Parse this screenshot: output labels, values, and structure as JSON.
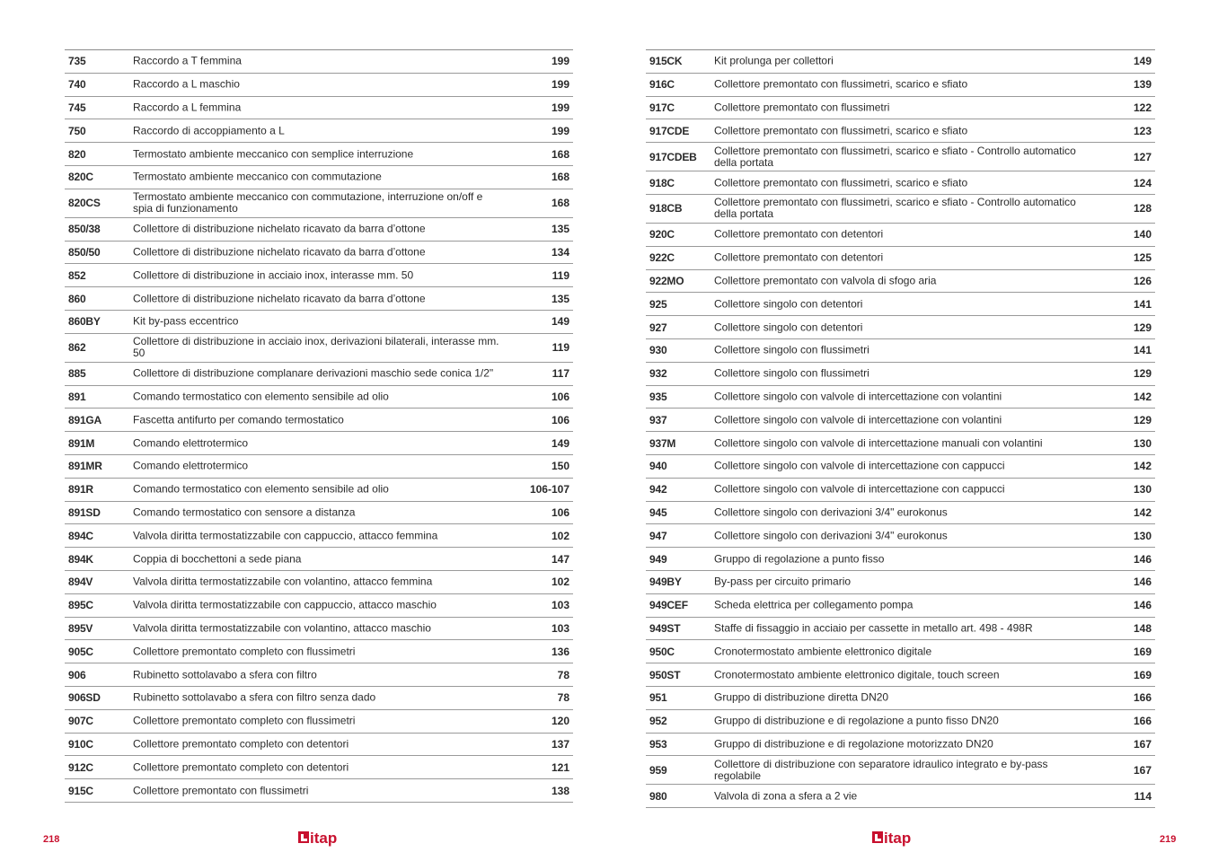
{
  "brand": {
    "name": "itap",
    "color": "#c8102e"
  },
  "left_page": {
    "page_number": "218",
    "rows": [
      [
        "735",
        "Raccordo a T femmina",
        "199"
      ],
      [
        "740",
        "Raccordo a L maschio",
        "199"
      ],
      [
        "745",
        "Raccordo a L femmina",
        "199"
      ],
      [
        "750",
        "Raccordo di accoppiamento a L",
        "199"
      ],
      [
        "820",
        "Termostato ambiente meccanico con semplice interruzione",
        "168"
      ],
      [
        "820C",
        "Termostato ambiente meccanico con commutazione",
        "168"
      ],
      [
        "820CS",
        "Termostato ambiente meccanico con commutazione, interruzione on/off e spia di funzionamento",
        "168"
      ],
      [
        "850/38",
        "Collettore di distribuzione nichelato ricavato da barra d’ottone",
        "135"
      ],
      [
        "850/50",
        "Collettore di distribuzione nichelato ricavato da barra d’ottone",
        "134"
      ],
      [
        "852",
        "Collettore di distribuzione in acciaio inox, interasse mm. 50",
        "119"
      ],
      [
        "860",
        "Collettore di distribuzione nichelato ricavato da barra d’ottone",
        "135"
      ],
      [
        "860BY",
        "Kit by-pass eccentrico",
        "149"
      ],
      [
        "862",
        "Collettore di distribuzione in acciaio inox, derivazioni bilaterali, interasse mm. 50",
        "119"
      ],
      [
        "885",
        "Collettore di distribuzione complanare derivazioni maschio sede conica 1/2\"",
        "117"
      ],
      [
        "891",
        "Comando termostatico con elemento sensibile ad olio",
        "106"
      ],
      [
        "891GA",
        "Fascetta antifurto per comando termostatico",
        "106"
      ],
      [
        "891M",
        "Comando elettrotermico",
        "149"
      ],
      [
        "891MR",
        "Comando elettrotermico",
        "150"
      ],
      [
        "891R",
        "Comando termostatico con elemento sensibile ad olio",
        "106-107"
      ],
      [
        "891SD",
        "Comando termostatico con sensore a distanza",
        "106"
      ],
      [
        "894C",
        "Valvola diritta termostatizzabile con cappuccio, attacco femmina",
        "102"
      ],
      [
        "894K",
        "Coppia di bocchettoni a sede piana",
        "147"
      ],
      [
        "894V",
        "Valvola diritta termostatizzabile con volantino, attacco femmina",
        "102"
      ],
      [
        "895C",
        "Valvola diritta termostatizzabile con cappuccio, attacco maschio",
        "103"
      ],
      [
        "895V",
        "Valvola diritta termostatizzabile con volantino, attacco maschio",
        "103"
      ],
      [
        "905C",
        "Collettore premontato completo con flussimetri",
        "136"
      ],
      [
        "906",
        "Rubinetto sottolavabo a sfera con filtro",
        "78"
      ],
      [
        "906SD",
        "Rubinetto sottolavabo a sfera con filtro senza dado",
        "78"
      ],
      [
        "907C",
        "Collettore premontato completo con flussimetri",
        "120"
      ],
      [
        "910C",
        "Collettore premontato completo con detentori",
        "137"
      ],
      [
        "912C",
        "Collettore premontato completo con detentori",
        "121"
      ],
      [
        "915C",
        "Collettore premontato con flussimetri",
        "138"
      ]
    ]
  },
  "right_page": {
    "page_number": "219",
    "rows": [
      [
        "915CK",
        "Kit prolunga per collettori",
        "149"
      ],
      [
        "916C",
        "Collettore premontato con flussimetri, scarico e sfiato",
        "139"
      ],
      [
        "917C",
        "Collettore premontato con flussimetri",
        "122"
      ],
      [
        "917CDE",
        "Collettore premontato con flussimetri, scarico e sfiato",
        "123"
      ],
      [
        "917CDEB",
        "Collettore premontato con flussimetri, scarico e sfiato - Controllo automatico della portata",
        "127"
      ],
      [
        "918C",
        "Collettore premontato con flussimetri, scarico e sfiato",
        "124"
      ],
      [
        "918CB",
        "Collettore premontato con flussimetri, scarico e sfiato - Controllo automatico della portata",
        "128"
      ],
      [
        "920C",
        "Collettore premontato con detentori",
        "140"
      ],
      [
        "922C",
        "Collettore premontato con detentori",
        "125"
      ],
      [
        "922MO",
        "Collettore premontato con valvola di sfogo aria",
        "126"
      ],
      [
        "925",
        "Collettore singolo con detentori",
        "141"
      ],
      [
        "927",
        "Collettore singolo con detentori",
        "129"
      ],
      [
        "930",
        "Collettore singolo con flussimetri",
        "141"
      ],
      [
        "932",
        "Collettore singolo con flussimetri",
        "129"
      ],
      [
        "935",
        "Collettore singolo con valvole di intercettazione con volantini",
        "142"
      ],
      [
        "937",
        "Collettore singolo con valvole di intercettazione con volantini",
        "129"
      ],
      [
        "937M",
        "Collettore singolo con valvole di intercettazione manuali con volantini",
        "130"
      ],
      [
        "940",
        "Collettore singolo con valvole di intercettazione con cappucci",
        "142"
      ],
      [
        "942",
        "Collettore singolo con valvole di intercettazione con cappucci",
        "130"
      ],
      [
        "945",
        "Collettore singolo con derivazioni 3/4\" eurokonus",
        "142"
      ],
      [
        "947",
        "Collettore singolo con derivazioni 3/4\" eurokonus",
        "130"
      ],
      [
        "949",
        "Gruppo di regolazione a punto fisso",
        "146"
      ],
      [
        "949BY",
        "By-pass per circuito primario",
        "146"
      ],
      [
        "949CEF",
        "Scheda elettrica per collegamento pompa",
        "146"
      ],
      [
        "949ST",
        "Staffe di fissaggio in acciaio per cassette in metallo art. 498 - 498R",
        "148"
      ],
      [
        "950C",
        "Cronotermostato ambiente elettronico digitale",
        "169"
      ],
      [
        "950ST",
        "Cronotermostato ambiente elettronico digitale, touch screen",
        "169"
      ],
      [
        "951",
        "Gruppo di distribuzione diretta DN20",
        "166"
      ],
      [
        "952",
        "Gruppo di distribuzione e di regolazione a punto fisso DN20",
        "166"
      ],
      [
        "953",
        "Gruppo di distribuzione e di regolazione motorizzato DN20",
        "167"
      ],
      [
        "959",
        "Collettore di distribuzione con separatore idraulico integrato e by-pass regolabile",
        "167"
      ],
      [
        "980",
        "Valvola di zona a sfera a 2 vie",
        "114"
      ]
    ]
  }
}
